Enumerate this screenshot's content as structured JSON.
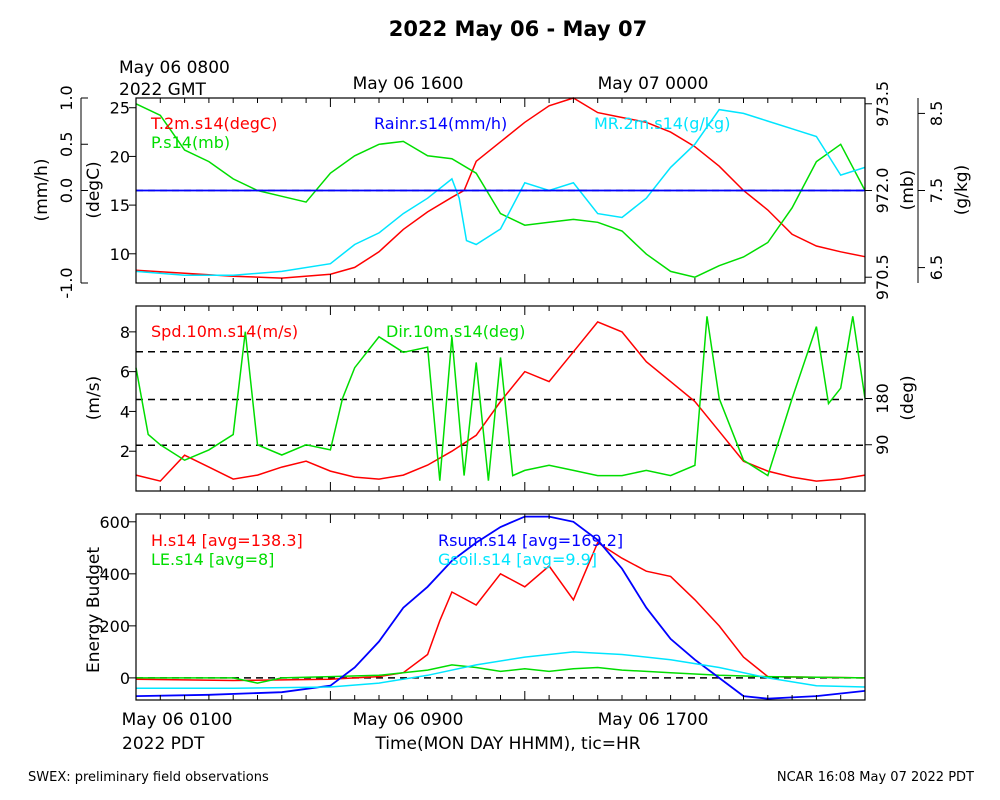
{
  "title": "2022 May 06 - May 07",
  "top_axis": {
    "start_label_line1": "May 06 0800",
    "start_label_line2": "2022 GMT",
    "labels": [
      "May 06 1600",
      "May 07 0000"
    ]
  },
  "bottom_axis": {
    "labels": [
      "May 06 0100",
      "May 06 0900",
      "May 06 1700"
    ],
    "year_label": "2022 PDT",
    "title": "Time(MON DAY HHMM), tic=HR"
  },
  "footer": {
    "left": "SWEX: preliminary field observations",
    "right": "NCAR 16:08 May 07 2022 PDT"
  },
  "colors": {
    "red": "#ff0000",
    "green": "#00dd00",
    "blue": "#0000ff",
    "cyan": "#00e5ff",
    "black": "#000000"
  },
  "chart_data": [
    {
      "type": "line",
      "panel": "meteorology",
      "x_unit": "hours since May 06 0100 PDT",
      "xlim": [
        0,
        30
      ],
      "axes": {
        "rain": {
          "label": "(mm/h)",
          "ylim": [
            -1.0,
            1.0
          ],
          "ticks": [
            "-1.0",
            "0.0",
            "0.5",
            "1.0"
          ],
          "side": "left-outer"
        },
        "temperature": {
          "label": "(degC)",
          "ylim": [
            7,
            26
          ],
          "ticks": [
            "10",
            "15",
            "20",
            "25"
          ],
          "side": "left-inner"
        },
        "pressure": {
          "label": "(mb)",
          "ylim": [
            970.4,
            973.6
          ],
          "ticks": [
            "970.5",
            "972.0",
            "973.5"
          ],
          "side": "right-inner"
        },
        "mixing_ratio": {
          "label": "(g/kg)",
          "ylim": [
            6.3,
            8.7
          ],
          "ticks": [
            "6.5",
            "7.5",
            "8.5"
          ],
          "side": "right-outer"
        }
      },
      "reference_lines": [
        0.0
      ],
      "series": [
        {
          "name": "T.2m.s14(degC)",
          "color": "red",
          "axis": "temperature",
          "x": [
            0,
            2,
            4,
            6,
            8,
            9,
            10,
            11,
            12,
            13,
            13.5,
            14,
            15,
            16,
            17,
            18,
            19,
            20,
            21,
            22,
            23,
            24,
            25,
            26,
            27,
            28,
            29,
            30
          ],
          "y": [
            8.3,
            8.0,
            7.7,
            7.5,
            7.9,
            8.6,
            10.2,
            12.5,
            14.3,
            15.8,
            16.5,
            19.5,
            21.5,
            23.5,
            25.2,
            26.0,
            24.5,
            24.0,
            23.5,
            22.5,
            21.0,
            19.0,
            16.5,
            14.5,
            12.0,
            10.8,
            10.2,
            9.7
          ]
        },
        {
          "name": "P.s14(mb)",
          "color": "green",
          "axis": "pressure",
          "x": [
            0,
            1,
            2,
            3,
            4,
            5,
            6,
            7,
            8,
            9,
            10,
            11,
            12,
            13,
            14,
            15,
            16,
            17,
            18,
            19,
            20,
            21,
            22,
            23,
            24,
            25,
            26,
            27,
            28,
            29,
            30
          ],
          "y": [
            973.5,
            973.3,
            972.7,
            972.5,
            972.2,
            972.0,
            971.9,
            971.8,
            972.3,
            972.6,
            972.8,
            972.85,
            972.6,
            972.55,
            972.3,
            971.6,
            971.4,
            971.45,
            971.5,
            971.45,
            971.3,
            970.9,
            970.6,
            970.5,
            970.7,
            970.85,
            971.1,
            971.7,
            972.5,
            972.8,
            972.0
          ]
        },
        {
          "name": "MR.2m.s14(g/kg)",
          "color": "cyan",
          "axis": "mixing_ratio",
          "x": [
            0,
            2,
            4,
            6,
            8,
            9,
            10,
            11,
            12,
            13,
            13.3,
            13.6,
            14,
            15,
            16,
            17,
            18,
            19,
            20,
            21,
            22,
            23,
            24,
            25,
            26,
            27,
            28,
            29,
            30
          ],
          "y": [
            6.45,
            6.4,
            6.4,
            6.45,
            6.55,
            6.8,
            6.95,
            7.2,
            7.4,
            7.65,
            7.4,
            6.85,
            6.8,
            7.0,
            7.6,
            7.5,
            7.6,
            7.2,
            7.15,
            7.4,
            7.8,
            8.1,
            8.55,
            8.5,
            8.4,
            8.3,
            8.2,
            7.7,
            7.8
          ]
        },
        {
          "name": "Rainr.s14(mm/h)",
          "color": "blue",
          "axis": "rain",
          "x": [
            0,
            30
          ],
          "y": [
            0.0,
            0.0
          ]
        }
      ]
    },
    {
      "type": "line",
      "panel": "wind",
      "xlim": [
        0,
        30
      ],
      "axes": {
        "speed": {
          "label": "(m/s)",
          "ylim": [
            0,
            9.3
          ],
          "ticks": [
            "2",
            "4",
            "6",
            "8"
          ],
          "side": "left"
        },
        "direction": {
          "label": "(deg)",
          "ylim": [
            0,
            360
          ],
          "ticks": [
            "90",
            "180"
          ],
          "side": "right"
        }
      },
      "reference_lines": [
        2.3,
        4.6,
        7.0
      ],
      "series": [
        {
          "name": "Spd.10m.s14(m/s)",
          "color": "red",
          "axis": "speed",
          "x": [
            0,
            1,
            2,
            3,
            4,
            5,
            6,
            7,
            8,
            9,
            10,
            11,
            12,
            13,
            14,
            15,
            16,
            17,
            18,
            19,
            20,
            21,
            22,
            23,
            24,
            25,
            26,
            27,
            28,
            29,
            30
          ],
          "y": [
            0.8,
            0.5,
            1.8,
            1.2,
            0.6,
            0.8,
            1.2,
            1.5,
            1.0,
            0.7,
            0.6,
            0.8,
            1.3,
            2.0,
            2.8,
            4.5,
            6.0,
            5.5,
            7.0,
            8.5,
            8.0,
            6.5,
            5.5,
            4.5,
            3.0,
            1.5,
            1.0,
            0.7,
            0.5,
            0.6,
            0.8
          ]
        },
        {
          "name": "Dir.10m.s14(deg)",
          "color": "green",
          "axis": "direction",
          "x": [
            0,
            0.5,
            1,
            2,
            3,
            4,
            4.5,
            5,
            6,
            7,
            8,
            8.5,
            9,
            10,
            11,
            12,
            12.5,
            13,
            13.5,
            14,
            14.5,
            15,
            15.5,
            16,
            17,
            18,
            19,
            20,
            21,
            22,
            23,
            23.5,
            24,
            25,
            26,
            27,
            28,
            28.5,
            29,
            29.5,
            30
          ],
          "y": [
            240,
            110,
            90,
            60,
            80,
            110,
            310,
            90,
            70,
            90,
            80,
            180,
            240,
            300,
            270,
            280,
            20,
            300,
            30,
            250,
            20,
            260,
            30,
            40,
            50,
            40,
            30,
            30,
            40,
            30,
            50,
            340,
            180,
            60,
            30,
            180,
            320,
            170,
            200,
            340,
            180
          ]
        }
      ]
    },
    {
      "type": "line",
      "panel": "energy",
      "xlim": [
        0,
        30
      ],
      "ylabel": "Energy Budget",
      "ylim": [
        -85,
        630
      ],
      "yticks": [
        0,
        200,
        400,
        600
      ],
      "reference_lines": [
        0
      ],
      "series": [
        {
          "name": "H.s14 [avg=138.3]",
          "color": "red",
          "x": [
            0,
            4,
            8,
            9,
            10,
            11,
            12,
            12.5,
            13,
            14,
            15,
            16,
            17,
            18,
            19,
            20,
            21,
            22,
            23,
            24,
            25,
            26,
            30
          ],
          "y": [
            -5,
            -10,
            -5,
            0,
            5,
            20,
            90,
            220,
            330,
            280,
            400,
            350,
            430,
            300,
            520,
            460,
            410,
            390,
            300,
            200,
            80,
            5,
            0
          ]
        },
        {
          "name": "LE.s14 [avg=8]",
          "color": "green",
          "x": [
            0,
            4,
            5,
            6,
            8,
            10,
            12,
            13,
            14,
            15,
            16,
            17,
            18,
            19,
            20,
            21,
            22,
            24,
            26,
            30
          ],
          "y": [
            0,
            0,
            -20,
            0,
            5,
            10,
            30,
            50,
            40,
            25,
            35,
            25,
            35,
            40,
            30,
            25,
            20,
            10,
            5,
            0
          ]
        },
        {
          "name": "Rsum.s14 [avg=169.2]",
          "color": "blue",
          "x": [
            0,
            3,
            6,
            8,
            9,
            10,
            11,
            12,
            13,
            14,
            15,
            16,
            17,
            18,
            19,
            20,
            21,
            22,
            23,
            24,
            25,
            26,
            27,
            28,
            29,
            30
          ],
          "y": [
            -70,
            -65,
            -55,
            -30,
            40,
            140,
            270,
            350,
            450,
            520,
            580,
            620,
            620,
            600,
            530,
            420,
            270,
            150,
            70,
            0,
            -70,
            -80,
            -75,
            -70,
            -60,
            -50
          ]
        },
        {
          "name": "Gsoil.s14 [avg=9.9]",
          "color": "cyan",
          "x": [
            0,
            4,
            8,
            10,
            12,
            14,
            16,
            18,
            20,
            22,
            24,
            26,
            28,
            30
          ],
          "y": [
            -40,
            -40,
            -35,
            -20,
            10,
            50,
            80,
            100,
            90,
            70,
            40,
            0,
            -30,
            -35
          ]
        }
      ]
    }
  ]
}
